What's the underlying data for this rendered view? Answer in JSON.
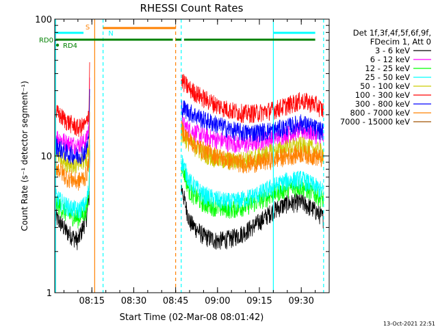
{
  "chart_data": {
    "type": "line",
    "title": "RHESSI Count Rates",
    "xlabel": "Start Time (02-Mar-08 08:01:42)",
    "ylabel": "Count Rate (s⁻¹ detector segment⁻¹)",
    "yscale": "log",
    "ylim": [
      1,
      100
    ],
    "xlim": [
      "08:01:42",
      "09:40:00"
    ],
    "x_ticks": [
      "08:15",
      "08:30",
      "08:45",
      "09:00",
      "09:15",
      "09:30"
    ],
    "y_ticks": [
      "1",
      "10",
      "100"
    ],
    "grid": false,
    "legend_position": "right",
    "legend_header": [
      "Det 1f,3f,4f,5f,6f,9f,",
      "FDecim 1, Att 0"
    ],
    "timestamp": "13-Oct-2021 22:51",
    "series": [
      {
        "name": "3 - 6 keV",
        "color": "#000000",
        "points": [
          [
            "08:02",
            3.6
          ],
          [
            "08:06",
            2.8
          ],
          [
            "08:10",
            2.4
          ],
          [
            "08:13",
            3.5
          ],
          [
            "08:14",
            5.0
          ],
          [
            "08:47",
            6.0
          ],
          [
            "08:50",
            3.3
          ],
          [
            "08:55",
            2.6
          ],
          [
            "09:00",
            2.4
          ],
          [
            "09:05",
            2.5
          ],
          [
            "09:10",
            2.8
          ],
          [
            "09:15",
            3.3
          ],
          [
            "09:20",
            4.0
          ],
          [
            "09:25",
            4.5
          ],
          [
            "09:30",
            4.6
          ],
          [
            "09:35",
            4.0
          ],
          [
            "09:38",
            3.5
          ]
        ]
      },
      {
        "name": "6 - 12 keV",
        "color": "#ff00ff",
        "points": [
          [
            "08:02",
            14.0
          ],
          [
            "08:06",
            12.5
          ],
          [
            "08:10",
            12.0
          ],
          [
            "08:13",
            13.0
          ],
          [
            "08:14",
            17.0
          ],
          [
            "08:47",
            17.5
          ],
          [
            "08:50",
            15.5
          ],
          [
            "08:55",
            14.0
          ],
          [
            "09:00",
            13.2
          ],
          [
            "09:05",
            12.5
          ],
          [
            "09:10",
            12.2
          ],
          [
            "09:15",
            12.8
          ],
          [
            "09:20",
            13.5
          ],
          [
            "09:25",
            14.5
          ],
          [
            "09:30",
            15.5
          ],
          [
            "09:35",
            14.5
          ],
          [
            "09:38",
            13.5
          ]
        ]
      },
      {
        "name": "12 - 25 keV",
        "color": "#00ff00",
        "points": [
          [
            "08:02",
            4.6
          ],
          [
            "08:06",
            3.8
          ],
          [
            "08:10",
            3.5
          ],
          [
            "08:13",
            4.0
          ],
          [
            "08:14",
            5.5
          ],
          [
            "08:47",
            9.0
          ],
          [
            "08:50",
            5.5
          ],
          [
            "08:55",
            4.5
          ],
          [
            "09:00",
            4.2
          ],
          [
            "09:05",
            4.1
          ],
          [
            "09:10",
            4.3
          ],
          [
            "09:15",
            4.7
          ],
          [
            "09:20",
            5.3
          ],
          [
            "09:25",
            5.8
          ],
          [
            "09:30",
            6.0
          ],
          [
            "09:35",
            5.3
          ],
          [
            "09:38",
            4.8
          ]
        ]
      },
      {
        "name": "25 - 50 keV",
        "color": "#00ffff",
        "points": [
          [
            "08:02",
            5.0
          ],
          [
            "08:06",
            4.3
          ],
          [
            "08:10",
            4.0
          ],
          [
            "08:13",
            4.5
          ],
          [
            "08:14",
            6.0
          ],
          [
            "08:47",
            9.5
          ],
          [
            "08:50",
            6.5
          ],
          [
            "08:55",
            5.2
          ],
          [
            "09:00",
            4.8
          ],
          [
            "09:05",
            4.6
          ],
          [
            "09:10",
            4.9
          ],
          [
            "09:15",
            5.3
          ],
          [
            "09:20",
            6.0
          ],
          [
            "09:25",
            6.6
          ],
          [
            "09:30",
            6.8
          ],
          [
            "09:35",
            6.0
          ],
          [
            "09:38",
            5.5
          ]
        ]
      },
      {
        "name": "50 - 100 keV",
        "color": "#cccc00",
        "points": [
          [
            "08:02",
            10.5
          ],
          [
            "08:06",
            9.0
          ],
          [
            "08:10",
            8.5
          ],
          [
            "08:13",
            9.5
          ],
          [
            "08:14",
            12.5
          ],
          [
            "08:47",
            14.5
          ],
          [
            "08:50",
            12.5
          ],
          [
            "08:55",
            10.5
          ],
          [
            "09:00",
            9.5
          ],
          [
            "09:05",
            9.2
          ],
          [
            "09:10",
            9.4
          ],
          [
            "09:15",
            10.0
          ],
          [
            "09:20",
            10.8
          ],
          [
            "09:25",
            11.5
          ],
          [
            "09:30",
            12.0
          ],
          [
            "09:35",
            11.2
          ],
          [
            "09:38",
            10.5
          ]
        ]
      },
      {
        "name": "100 - 300 keV",
        "color": "#ff0000",
        "points": [
          [
            "08:02",
            21.0
          ],
          [
            "08:06",
            18.0
          ],
          [
            "08:10",
            16.0
          ],
          [
            "08:13",
            17.0
          ],
          [
            "08:14",
            22.0
          ],
          [
            "08:47",
            36.0
          ],
          [
            "08:50",
            31.0
          ],
          [
            "08:55",
            26.5
          ],
          [
            "09:00",
            23.5
          ],
          [
            "09:05",
            21.5
          ],
          [
            "09:10",
            20.5
          ],
          [
            "09:15",
            20.8
          ],
          [
            "09:20",
            21.8
          ],
          [
            "09:25",
            23.5
          ],
          [
            "09:30",
            25.5
          ],
          [
            "09:35",
            24.0
          ],
          [
            "09:38",
            21.5
          ]
        ]
      },
      {
        "name": "300 - 800 keV",
        "color": "#0000ff",
        "points": [
          [
            "08:02",
            12.0
          ],
          [
            "08:06",
            10.5
          ],
          [
            "08:10",
            10.0
          ],
          [
            "08:13",
            11.0
          ],
          [
            "08:14",
            14.0
          ],
          [
            "08:47",
            23.0
          ],
          [
            "08:50",
            21.0
          ],
          [
            "08:55",
            18.5
          ],
          [
            "09:00",
            17.0
          ],
          [
            "09:05",
            15.5
          ],
          [
            "09:10",
            14.8
          ],
          [
            "09:15",
            15.0
          ],
          [
            "09:20",
            15.5
          ],
          [
            "09:25",
            16.3
          ],
          [
            "09:30",
            17.5
          ],
          [
            "09:35",
            16.0
          ],
          [
            "09:38",
            15.0
          ]
        ]
      },
      {
        "name": "800 - 7000 keV",
        "color": "#ff8000",
        "points": [
          [
            "08:02",
            8.5
          ],
          [
            "08:06",
            7.0
          ],
          [
            "08:10",
            6.5
          ],
          [
            "08:13",
            7.2
          ],
          [
            "08:14",
            9.5
          ],
          [
            "08:47",
            16.0
          ],
          [
            "08:50",
            13.0
          ],
          [
            "08:55",
            11.0
          ],
          [
            "09:00",
            10.0
          ],
          [
            "09:05",
            9.2
          ],
          [
            "09:10",
            8.8
          ],
          [
            "09:15",
            9.0
          ],
          [
            "09:20",
            9.5
          ],
          [
            "09:25",
            10.0
          ],
          [
            "09:30",
            10.5
          ],
          [
            "09:35",
            10.0
          ],
          [
            "09:38",
            9.5
          ]
        ]
      },
      {
        "name": "7000 - 15000 keV",
        "color": "#a05000",
        "points": []
      }
    ],
    "state_bars": [
      {
        "label": "S",
        "color": "#ff8000",
        "segments": [
          [
            "08:19",
            "08:45"
          ]
        ]
      },
      {
        "label": "N",
        "color": "#00ffff",
        "segments": [
          [
            "08:02",
            "08:12"
          ],
          [
            "09:20",
            "09:35"
          ]
        ]
      },
      {
        "label": "RD0",
        "color": "#008000",
        "segments": [
          [
            "08:02",
            "08:44"
          ],
          [
            "08:45",
            "08:47"
          ],
          [
            "08:48",
            "09:27"
          ],
          [
            "09:27",
            "09:35"
          ]
        ]
      },
      {
        "label": "RD4",
        "color": "#008000",
        "segments": []
      }
    ],
    "vertical_markers": [
      {
        "time": "08:02",
        "color": "#00ffff",
        "style": "solid"
      },
      {
        "time": "08:16",
        "color": "#ff8000",
        "style": "solid"
      },
      {
        "time": "08:19",
        "color": "#00ffff",
        "style": "dashed"
      },
      {
        "time": "08:45",
        "color": "#ff8000",
        "style": "dashed"
      },
      {
        "time": "08:47",
        "color": "#00ffff",
        "style": "dashed"
      },
      {
        "time": "09:20",
        "color": "#00ffff",
        "style": "solid"
      },
      {
        "time": "09:38",
        "color": "#00ffff",
        "style": "dashed"
      }
    ]
  }
}
